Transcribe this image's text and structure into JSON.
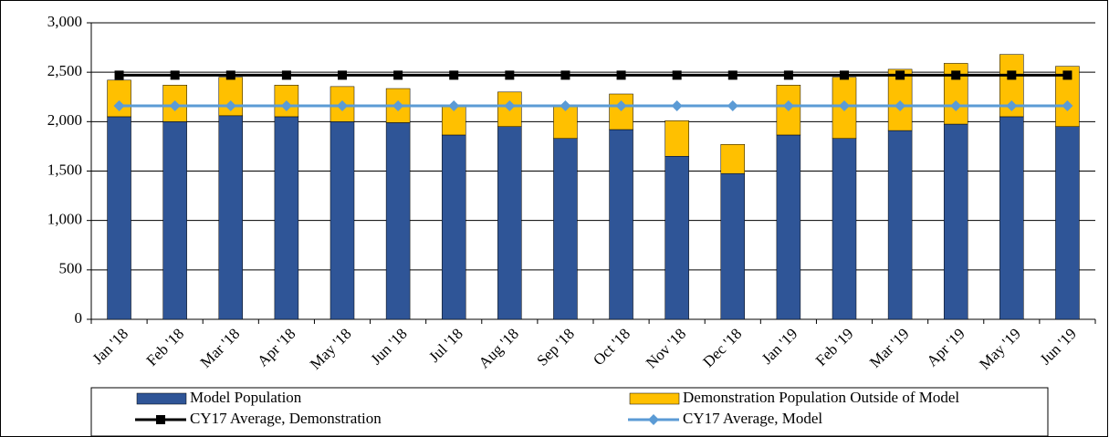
{
  "chart_data": {
    "type": "bar",
    "stacked": true,
    "categories": [
      "Jan '18",
      "Feb '18",
      "Mar '18",
      "Apr '18",
      "May '18",
      "Jun '18",
      "Jul '18",
      "Aug '18",
      "Sep '18",
      "Oct '18",
      "Nov '18",
      "Dec '18",
      "Jan '19",
      "Feb '19",
      "Mar '19",
      "Apr '19",
      "May '19",
      "Jun '19"
    ],
    "series": [
      {
        "name": "Model Population",
        "type": "bar",
        "color": "#2f5597",
        "values": [
          2050,
          2000,
          2060,
          2050,
          2000,
          1990,
          1865,
          1950,
          1830,
          1920,
          1650,
          1475,
          1865,
          1830,
          1910,
          1975,
          2050,
          1950
        ]
      },
      {
        "name": "Demonstration Population Outside of Model",
        "type": "bar",
        "color": "#ffc000",
        "values": [
          370,
          370,
          390,
          320,
          355,
          345,
          285,
          350,
          320,
          360,
          360,
          295,
          505,
          620,
          620,
          615,
          630,
          610
        ]
      },
      {
        "name": "CY17 Average, Demonstration",
        "type": "line",
        "color": "#000000",
        "marker": "square",
        "values": [
          2470,
          2470,
          2470,
          2470,
          2470,
          2470,
          2470,
          2470,
          2470,
          2470,
          2470,
          2470,
          2470,
          2470,
          2470,
          2470,
          2470,
          2470
        ]
      },
      {
        "name": "CY17 Average, Model",
        "type": "line",
        "color": "#5b9bd5",
        "marker": "diamond",
        "values": [
          2160,
          2160,
          2160,
          2160,
          2160,
          2160,
          2160,
          2160,
          2160,
          2160,
          2160,
          2160,
          2160,
          2160,
          2160,
          2160,
          2160,
          2160
        ]
      }
    ],
    "ylim": [
      0,
      3000
    ],
    "yticks": [
      0,
      500,
      {
        "value": 1000,
        "label": "1,000"
      },
      {
        "value": 1500,
        "label": "1,500"
      },
      {
        "value": 2000,
        "label": "2,000"
      },
      {
        "value": 2500,
        "label": "2,500"
      },
      {
        "value": 3000,
        "label": "3,000"
      }
    ],
    "grid": true
  }
}
